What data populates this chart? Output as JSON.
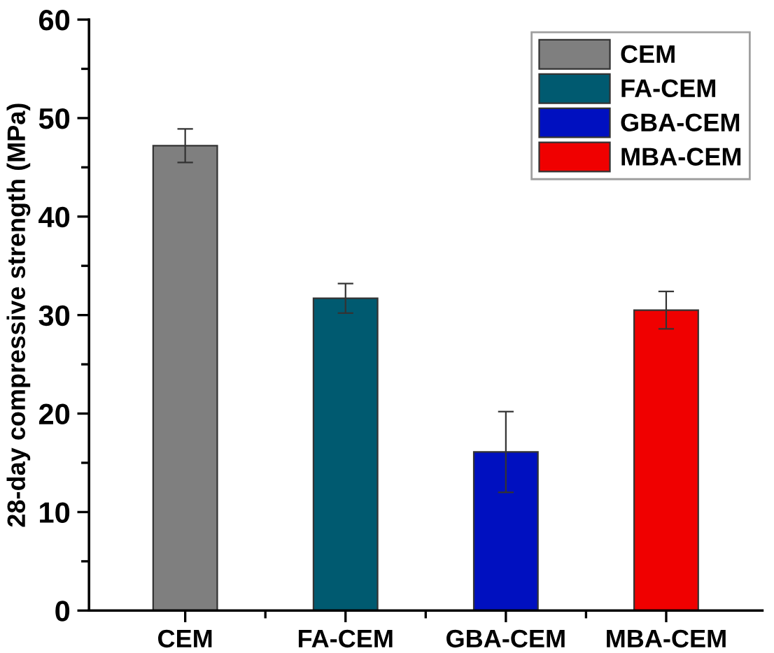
{
  "chart_data": {
    "type": "bar",
    "ylabel": "28-day compressive strength (MPa)",
    "categories": [
      "CEM",
      "FA-CEM",
      "GBA-CEM",
      "MBA-CEM"
    ],
    "series": [
      {
        "name": "CEM",
        "color": "#7f7f7f",
        "values": [
          47.2,
          null,
          null,
          null
        ],
        "errors": [
          1.7,
          null,
          null,
          null
        ]
      },
      {
        "name": "FA-CEM",
        "color": "#005a70",
        "values": [
          null,
          31.7,
          null,
          null
        ],
        "errors": [
          null,
          1.5,
          null,
          null
        ]
      },
      {
        "name": "GBA-CEM",
        "color": "#0010c0",
        "values": [
          null,
          null,
          16.1,
          null
        ],
        "errors": [
          null,
          null,
          4.1,
          null
        ]
      },
      {
        "name": "MBA-CEM",
        "color": "#f00000",
        "values": [
          null,
          null,
          null,
          30.5
        ],
        "errors": [
          null,
          null,
          null,
          1.9
        ]
      }
    ],
    "ylim": [
      0,
      60
    ],
    "yticks": [
      0,
      10,
      20,
      30,
      40,
      50,
      60
    ],
    "legend": "top right",
    "grid": false
  }
}
